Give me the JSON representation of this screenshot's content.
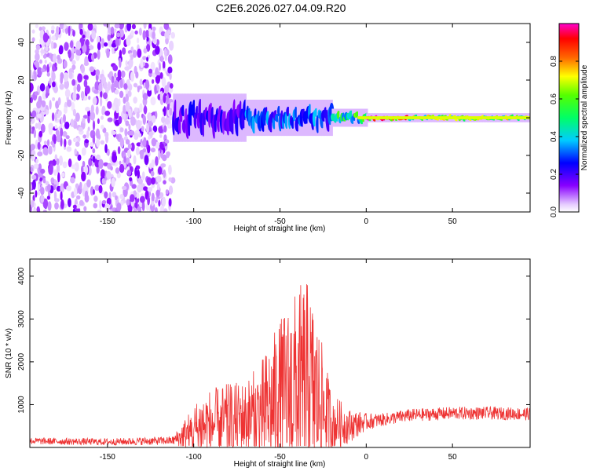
{
  "title": "C2E6.2026.027.04.09.R20",
  "chart_data": [
    {
      "type": "heatmap",
      "xlabel": "Height of straight line (km)",
      "ylabel": "Frequency (Hz)",
      "xlim": [
        -195,
        95
      ],
      "ylim": [
        -50,
        50
      ],
      "xticks": [
        -150,
        -100,
        -50,
        0,
        50
      ],
      "yticks": [
        -40,
        -20,
        0,
        20,
        40
      ],
      "colorbar": {
        "label": "Normalized spectral amplitude",
        "range": [
          0,
          1
        ],
        "ticks": [
          0.0,
          0.2,
          0.4,
          0.6,
          0.8
        ],
        "colormap": "rainbow (white-violet-blue-cyan-green-yellow-red-magenta)"
      },
      "regions": [
        {
          "x_range": [
            -195,
            -112
          ],
          "freq_spread_hz": 50,
          "amplitude": 0.1,
          "description": "broadband noise"
        },
        {
          "x_range": [
            -112,
            -70
          ],
          "freq_spread_hz": 8,
          "amplitude": 0.2
        },
        {
          "x_range": [
            -70,
            -20
          ],
          "freq_spread_hz": 6,
          "amplitude": 0.3
        },
        {
          "x_range": [
            -20,
            0
          ],
          "freq_spread_hz": 3,
          "amplitude": 0.5
        },
        {
          "x_range": [
            0,
            25
          ],
          "freq_spread_hz": 1.5,
          "amplitude": 0.9
        },
        {
          "x_range": [
            25,
            95
          ],
          "freq_spread_hz": 1.5,
          "amplitude": 0.6
        }
      ]
    },
    {
      "type": "line",
      "xlabel": "Height of straight line (km)",
      "ylabel": "SNR (10 * v/v)",
      "xlim": [
        -195,
        95
      ],
      "ylim": [
        0,
        4400
      ],
      "xticks": [
        -150,
        -100,
        -50,
        0,
        50
      ],
      "yticks": [
        1000,
        2000,
        3000,
        4000
      ],
      "color": "#ee3333",
      "envelope": {
        "x": [
          -195,
          -150,
          -112,
          -105,
          -95,
          -80,
          -70,
          -60,
          -50,
          -40,
          -35,
          -30,
          -25,
          -20,
          -10,
          0,
          10,
          25,
          50,
          70,
          95
        ],
        "baseline": [
          150,
          130,
          160,
          300,
          500,
          600,
          700,
          800,
          1200,
          1400,
          1500,
          1300,
          900,
          600,
          500,
          600,
          650,
          750,
          800,
          800,
          780
        ],
        "amplitude": [
          80,
          80,
          100,
          400,
          800,
          900,
          850,
          1300,
          1800,
          2300,
          2500,
          2000,
          1400,
          700,
          400,
          200,
          150,
          150,
          150,
          150,
          150
        ]
      }
    }
  ]
}
